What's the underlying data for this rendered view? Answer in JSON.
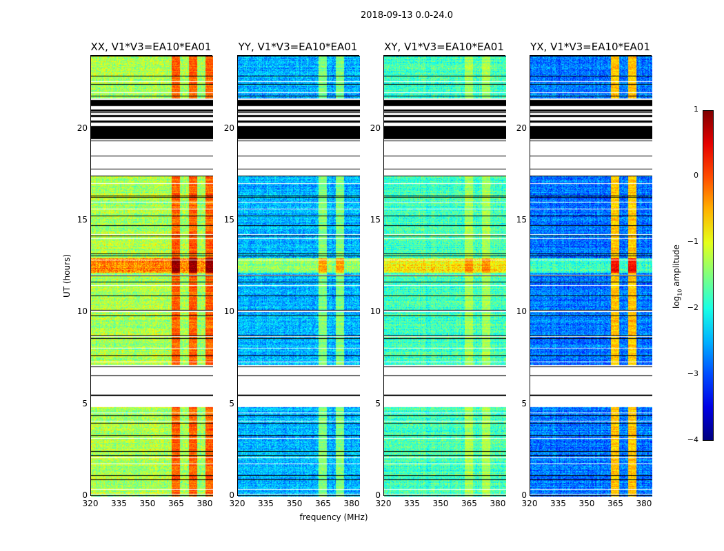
{
  "chart_data": {
    "type": "heatmap",
    "title": "2018-09-13 0.0-24.0",
    "xlabel": "frequency (MHz)",
    "ylabel": "UT (hours)",
    "xlim": [
      320,
      384
    ],
    "ylim": [
      0,
      24
    ],
    "xticks": [
      "320",
      "335",
      "350",
      "365",
      "380"
    ],
    "xtick_values": [
      320,
      335,
      350,
      365,
      380
    ],
    "yticks": [
      "0",
      "5",
      "10",
      "15",
      "20"
    ],
    "ytick_values": [
      0,
      5,
      10,
      15,
      20
    ],
    "colorbar": {
      "label": "log10 amplitude",
      "label_main": "log",
      "label_sub": "10",
      "label_rest": " amplitude",
      "range": [
        -4,
        1
      ],
      "ticks": [
        "1",
        "0",
        "−1",
        "−2",
        "−3",
        "−4"
      ],
      "tick_values": [
        1,
        0,
        -1,
        -2,
        -3,
        -4
      ],
      "colormap": "jet"
    },
    "no_data_ut_ranges": [
      [
        4.9,
        7.2
      ],
      [
        17.5,
        19.5
      ]
    ],
    "flagged_ut_ranges": [
      [
        19.5,
        20.2
      ],
      [
        20.4,
        20.5
      ],
      [
        20.7,
        20.8
      ],
      [
        21.0,
        21.1
      ],
      [
        21.3,
        21.6
      ]
    ],
    "bright_ut_band": [
      12.2,
      13.0
    ],
    "panels": [
      {
        "title": "XX, V1*V3=EA10*EA01",
        "base_log_amp": -1.3,
        "hot_freq_range_mhz": [
          362,
          384
        ],
        "hot_log_amp": -0.1
      },
      {
        "title": "YY, V1*V3=EA10*EA01",
        "base_log_amp": -2.5,
        "hot_freq_range_mhz": [
          362,
          380
        ],
        "hot_log_amp": -1.5
      },
      {
        "title": "XY, V1*V3=EA10*EA01",
        "base_log_amp": -1.8,
        "hot_freq_range_mhz": [
          362,
          380
        ],
        "hot_log_amp": -1.3
      },
      {
        "title": "YX, V1*V3=EA10*EA01",
        "base_log_amp": -2.8,
        "hot_freq_range_mhz": [
          362,
          380
        ],
        "hot_log_amp": -0.6
      }
    ]
  }
}
